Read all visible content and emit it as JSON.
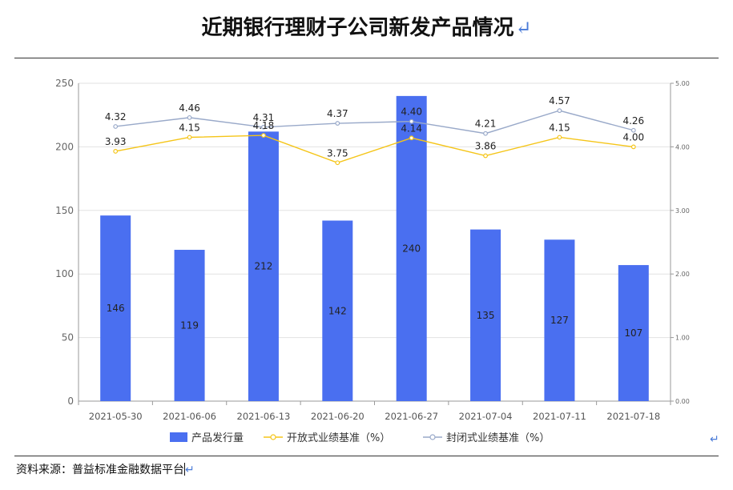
{
  "title": "近期银行理财子公司新发产品情况",
  "return_mark": "↵",
  "source": "资料来源：普益标准金融数据平台",
  "colors": {
    "bar": "#4a6ff0",
    "open_line": "#f5c518",
    "closed_line": "#99a9c9",
    "grid": "#e2e2e2",
    "axis": "#999999"
  },
  "chart_data": {
    "type": "bar",
    "categories": [
      "2021-05-30",
      "2021-06-06",
      "2021-06-13",
      "2021-06-20",
      "2021-06-27",
      "2021-07-04",
      "2021-07-11",
      "2021-07-18"
    ],
    "series": [
      {
        "name": "产品发行量",
        "type": "bar",
        "axis": "left",
        "values": [
          146,
          119,
          212,
          142,
          240,
          135,
          127,
          107
        ],
        "labels": [
          "146",
          "119",
          "212",
          "142",
          "240",
          "135",
          "127",
          "107"
        ]
      },
      {
        "name": "开放式业绩基准（%）",
        "type": "line",
        "axis": "right",
        "values": [
          3.93,
          4.15,
          4.18,
          3.75,
          4.14,
          3.86,
          4.15,
          4.0
        ],
        "labels": [
          "3.93",
          "4.15",
          "4.18",
          "3.75",
          "4.14",
          "3.86",
          "4.15",
          "4.00"
        ]
      },
      {
        "name": "封闭式业绩基准（%）",
        "type": "line",
        "axis": "right",
        "values": [
          4.32,
          4.46,
          4.31,
          4.37,
          4.4,
          4.21,
          4.57,
          4.26
        ],
        "labels": [
          "4.32",
          "4.46",
          "4.31",
          "4.37",
          "4.40",
          "4.21",
          "4.57",
          "4.26"
        ]
      }
    ],
    "y_left": {
      "min": 0,
      "max": 250,
      "ticks": [
        "0",
        "50",
        "100",
        "150",
        "200",
        "250"
      ]
    },
    "y_right": {
      "min": 0,
      "max": 5,
      "ticks": [
        "0.00",
        "1.00",
        "2.00",
        "3.00",
        "4.00",
        "5.00"
      ]
    },
    "grid": true,
    "legend_position": "bottom"
  }
}
